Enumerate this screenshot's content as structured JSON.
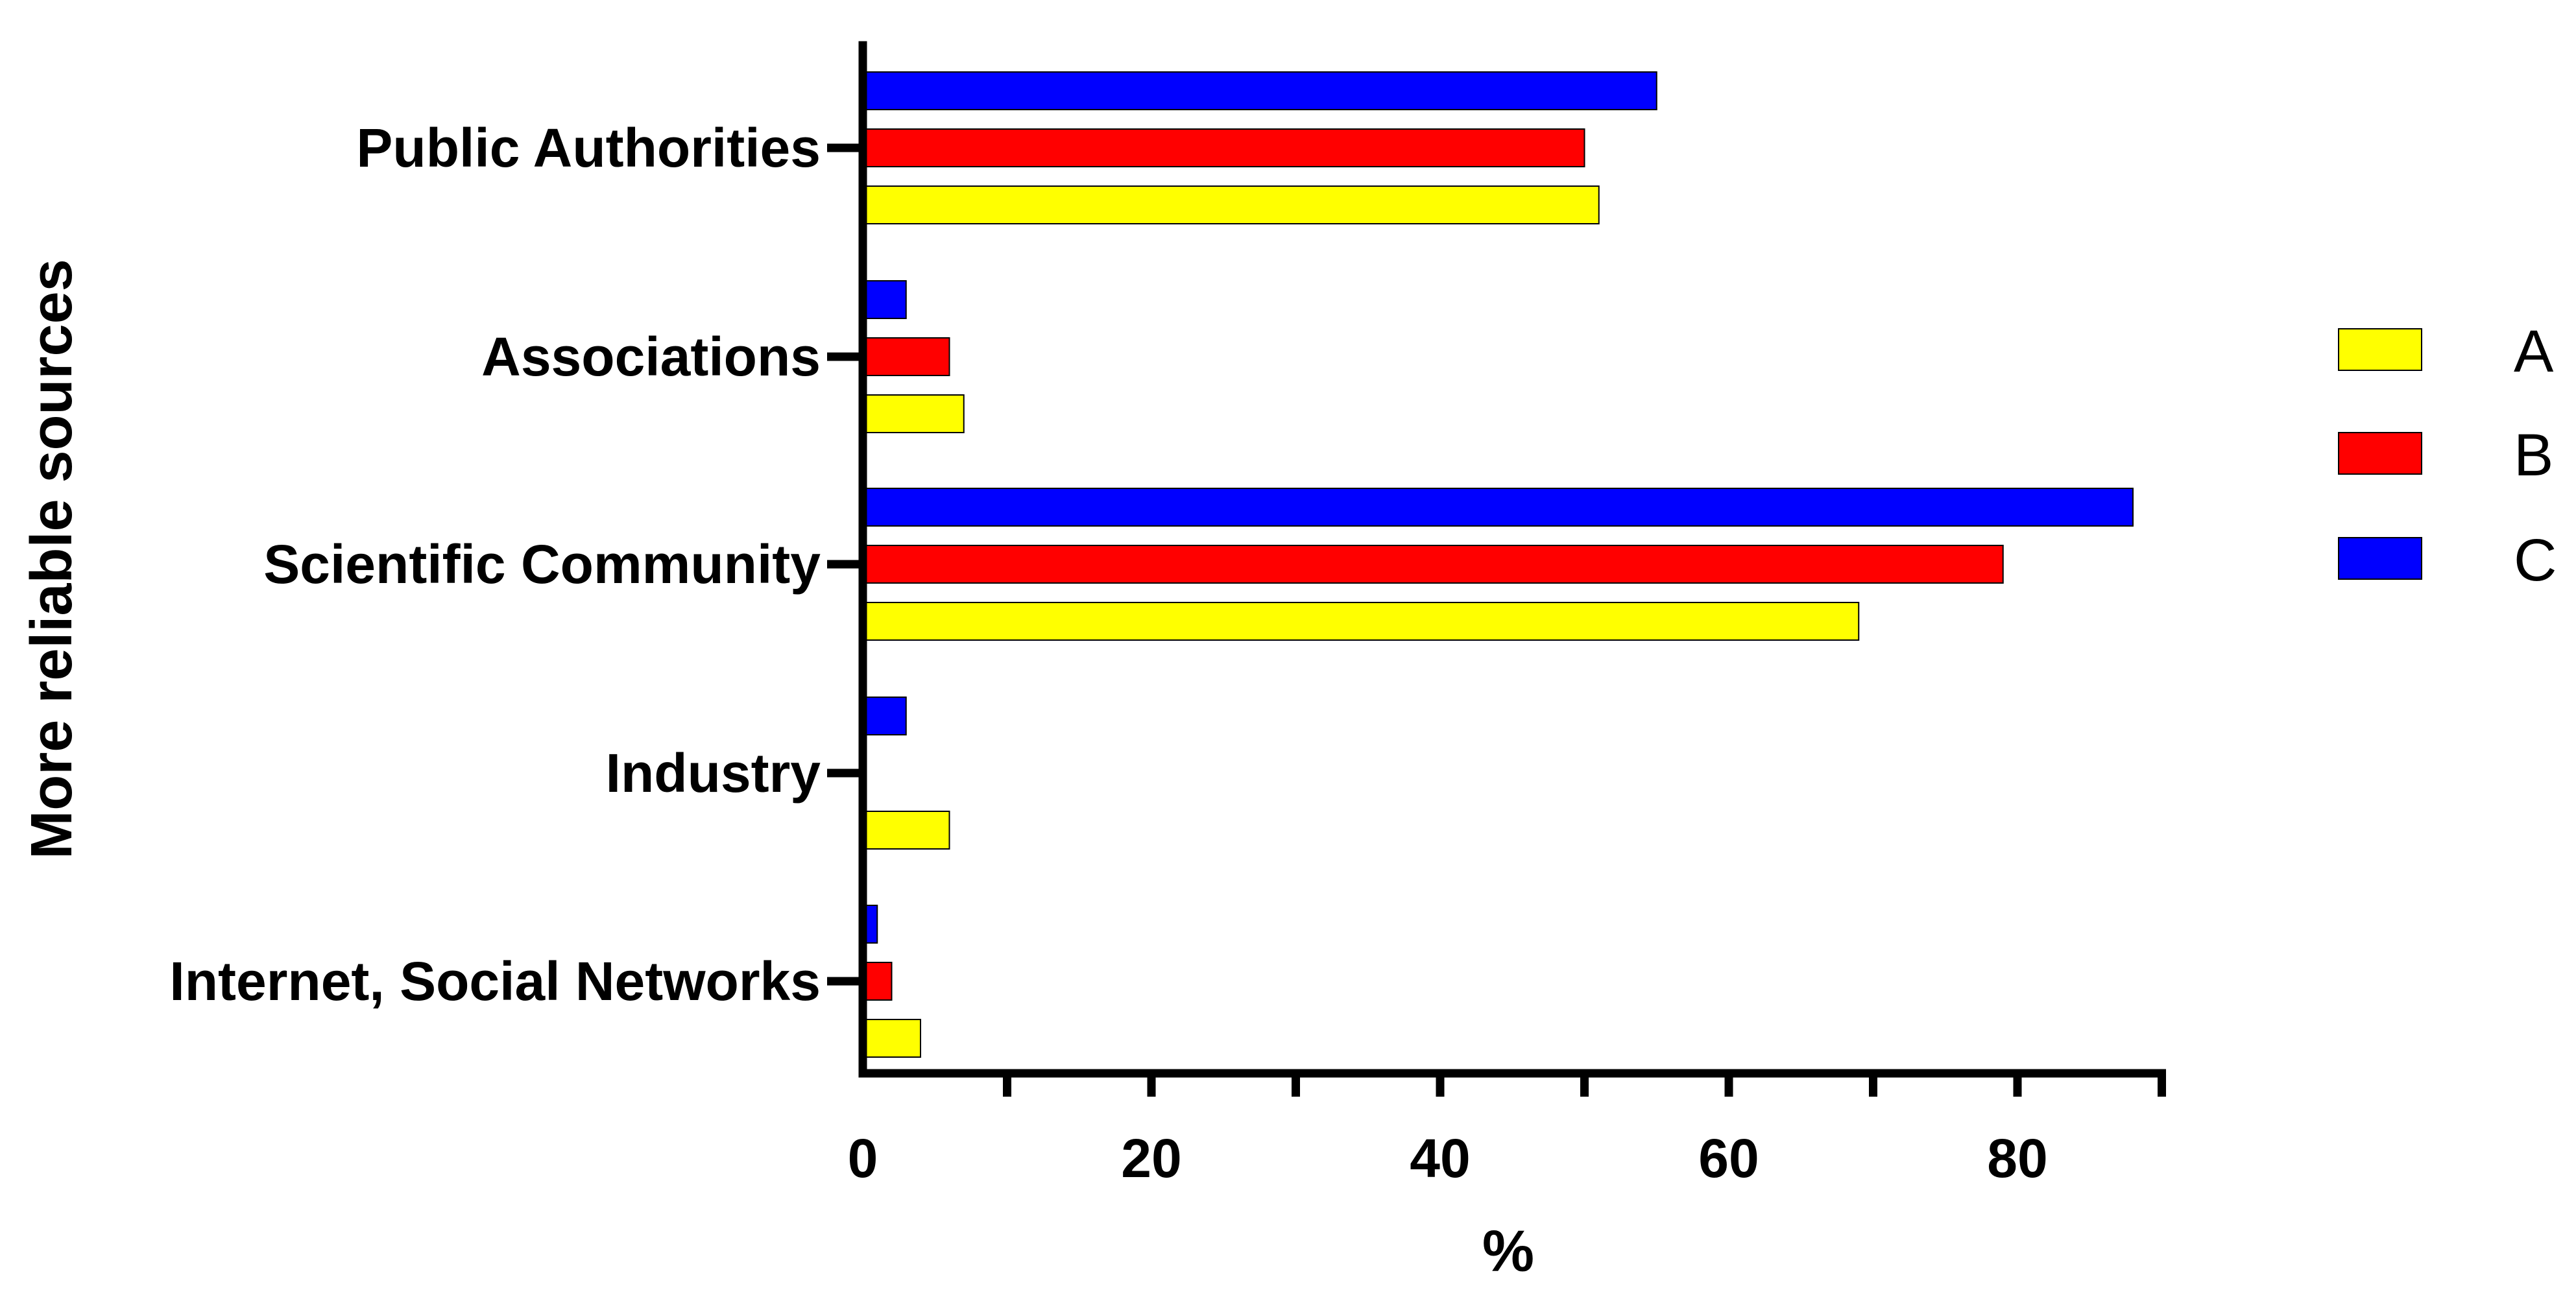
{
  "chart_data": {
    "type": "bar",
    "orientation": "horizontal",
    "categories": [
      "Public Authorities",
      "Associations",
      "Scientific Community",
      "Industry",
      "Internet, Social Networks"
    ],
    "series": [
      {
        "name": "A",
        "color": "#ffff00",
        "values": [
          51,
          7,
          69,
          6,
          4
        ]
      },
      {
        "name": "B",
        "color": "#ff0000",
        "values": [
          50,
          6,
          79,
          0,
          2
        ]
      },
      {
        "name": "C",
        "color": "#0000ff",
        "values": [
          55,
          3,
          88,
          3,
          1
        ]
      }
    ],
    "xlabel": "%",
    "ylabel": "More reliable sources",
    "xlim": [
      0,
      90
    ],
    "x_ticks": [
      0,
      20,
      40,
      60,
      80
    ],
    "x_minor_ticks": [
      10,
      30,
      50,
      70,
      90
    ],
    "grid": false,
    "legend_position": "right"
  }
}
